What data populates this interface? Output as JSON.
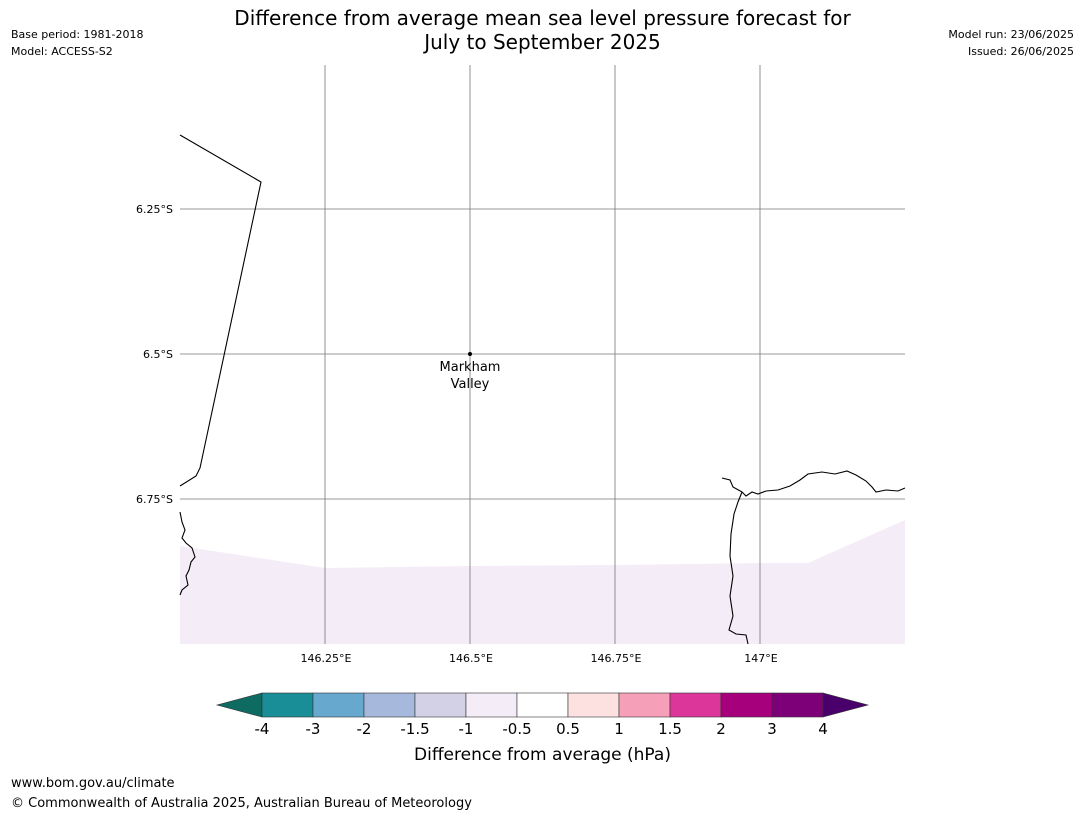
{
  "header": {
    "title_line1": "Difference from average mean sea level pressure forecast for",
    "title_line2": "July to September 2025",
    "base_period": "Base period: 1981-2018",
    "model": "Model: ACCESS-S2",
    "model_run": "Model run: 23/06/2025",
    "issued": "Issued: 26/06/2025"
  },
  "map": {
    "lat_labels": [
      "6.25°S",
      "6.5°S",
      "6.75°S"
    ],
    "lon_labels": [
      "146.25°E",
      "146.5°E",
      "146.75°E",
      "147°E"
    ],
    "place": {
      "name_line1": "Markham",
      "name_line2": "Valley"
    },
    "shaded_category": "-1 to -0.5",
    "shade_color": "#f4ecf6"
  },
  "colorbar": {
    "label": "Difference from average (hPa)",
    "ticks": [
      "-4",
      "-3",
      "-2",
      "-1.5",
      "-1",
      "-0.5",
      "0.5",
      "1",
      "1.5",
      "2",
      "3",
      "4"
    ],
    "under_color": "#0e6b62",
    "colors": [
      "#1a8e96",
      "#67a8cf",
      "#a6b9dc",
      "#d2d1e6",
      "#f4ecf6",
      "#ffffff",
      "#fde0e0",
      "#f69fb8",
      "#dc369a",
      "#a6007c",
      "#7d0079"
    ],
    "over_color": "#4a006b"
  },
  "footer": {
    "url": "www.bom.gov.au/climate",
    "copyright": "© Commonwealth of Australia 2025, Australian Bureau of Meteorology"
  }
}
